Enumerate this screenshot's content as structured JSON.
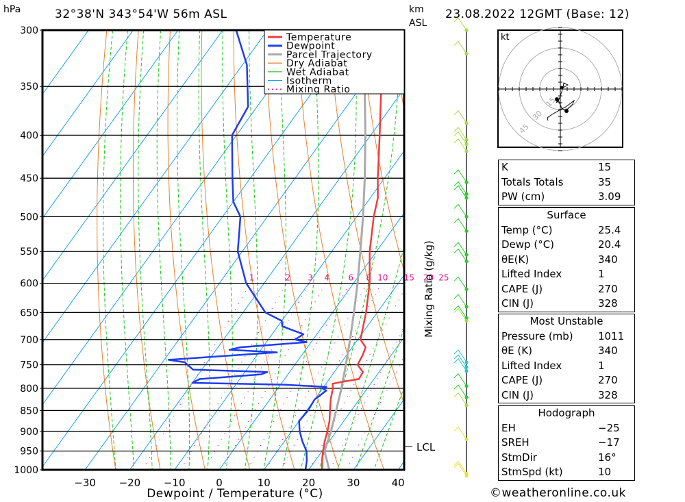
{
  "header": {
    "pressure_unit": "hPa",
    "location": "32°38'N  343°54'W  56m  ASL",
    "height_unit_line1": "km",
    "height_unit_line2": "ASL",
    "datetime": "23.08.2022  12GMT  (Base: 12)"
  },
  "colors": {
    "temperature": "#f03c3c",
    "dewpoint": "#1e3cf0",
    "parcel": "#aaaaaa",
    "dry_adiabat": "#e8822a",
    "wet_adiabat": "#1ec81e",
    "isotherm": "#1ea0f0",
    "mixing_ratio": "#e0148c",
    "wind_high": "#a0e040",
    "wind_mid": "#28d028",
    "wind_cyan": "#28c8c8",
    "wind_low": "#e8e040"
  },
  "chart_data": {
    "type": "line",
    "title": "32°38'N 343°54'W 56m ASL",
    "subtitle": "23.08.2022 12GMT (Base: 12)",
    "xlabel": "Dewpoint / Temperature (°C)",
    "ylabel": "hPa",
    "right_label": "Mixing Ratio (g/kg)",
    "x_ticks": [
      -30,
      -20,
      -10,
      0,
      10,
      20,
      30,
      40
    ],
    "x_tick_labels": [
      "−30",
      "−20",
      "−10",
      "0",
      "10",
      "20",
      "30",
      "40"
    ],
    "xlim": [
      -40,
      41
    ],
    "y_ticks": [
      300,
      350,
      400,
      450,
      500,
      550,
      600,
      650,
      700,
      750,
      800,
      850,
      900,
      950,
      1000
    ],
    "ylim": [
      1000,
      300
    ],
    "legend_position": "top-center",
    "legend": [
      {
        "label": "Temperature",
        "key": "temperature",
        "style": "solid"
      },
      {
        "label": "Dewpoint",
        "key": "dewpoint",
        "style": "solid"
      },
      {
        "label": "Parcel Trajectory",
        "key": "parcel",
        "style": "solid"
      },
      {
        "label": "Dry Adiabat",
        "key": "dry_adiabat",
        "style": "thin"
      },
      {
        "label": "Wet Adiabat",
        "key": "wet_adiabat",
        "style": "thin"
      },
      {
        "label": "Isotherm",
        "key": "isotherm",
        "style": "thin"
      },
      {
        "label": "Mixing Ratio",
        "key": "mixing_ratio",
        "style": "dotted"
      }
    ],
    "mixing_ratio_labels": [
      "1",
      "2",
      "3",
      "4",
      "6",
      "8",
      "10",
      "15",
      "20",
      "25"
    ],
    "mixing_ratio_values": [
      1,
      2,
      3,
      4,
      6,
      8,
      10,
      15,
      20,
      25
    ],
    "mixing_ratio_label_pressure": 600,
    "lcl_label": "LCL",
    "lcl_pressure": 945,
    "series": [
      {
        "name": "Temperature",
        "key": "temperature",
        "points": [
          [
            1011,
            25.4
          ],
          [
            1000,
            23.0
          ],
          [
            975,
            21.5
          ],
          [
            950,
            20.2
          ],
          [
            925,
            19.0
          ],
          [
            900,
            18.0
          ],
          [
            875,
            16.8
          ],
          [
            850,
            15.2
          ],
          [
            825,
            13.6
          ],
          [
            800,
            12.3
          ],
          [
            790,
            11.5
          ],
          [
            785,
            13.8
          ],
          [
            780,
            16.6
          ],
          [
            765,
            16.4
          ],
          [
            750,
            14.0
          ],
          [
            730,
            13.6
          ],
          [
            715,
            13.0
          ],
          [
            700,
            10.6
          ],
          [
            650,
            7.5
          ],
          [
            600,
            3.6
          ],
          [
            550,
            -1.5
          ],
          [
            500,
            -6.2
          ],
          [
            475,
            -8.3
          ],
          [
            450,
            -11.5
          ],
          [
            400,
            -18.0
          ],
          [
            350,
            -25.5
          ],
          [
            320,
            -31.5
          ],
          [
            300,
            -34.0
          ]
        ]
      },
      {
        "name": "Dewpoint",
        "key": "dewpoint",
        "points": [
          [
            1011,
            20.4
          ],
          [
            1000,
            19.3
          ],
          [
            975,
            18.1
          ],
          [
            950,
            16.5
          ],
          [
            925,
            14.0
          ],
          [
            900,
            11.8
          ],
          [
            875,
            10.0
          ],
          [
            850,
            10.3
          ],
          [
            825,
            10.0
          ],
          [
            805,
            11.2
          ],
          [
            800,
            10.0
          ],
          [
            797,
            10.6
          ],
          [
            792,
            1.0
          ],
          [
            788,
            -20.0
          ],
          [
            780,
            -19.0
          ],
          [
            770,
            -6.0
          ],
          [
            765,
            -5.0
          ],
          [
            760,
            -22.0
          ],
          [
            745,
            -25.0
          ],
          [
            740,
            -29.0
          ],
          [
            725,
            -6.0
          ],
          [
            720,
            -17.0
          ],
          [
            715,
            -15.0
          ],
          [
            705,
            -1.0
          ],
          [
            700,
            -4.0
          ],
          [
            690,
            -3.0
          ],
          [
            675,
            -9.0
          ],
          [
            665,
            -10.0
          ],
          [
            650,
            -15.0
          ],
          [
            600,
            -24.0
          ],
          [
            550,
            -31.0
          ],
          [
            500,
            -36.0
          ],
          [
            480,
            -40.0
          ],
          [
            450,
            -44.0
          ],
          [
            400,
            -51.0
          ],
          [
            370,
            -52.0
          ],
          [
            330,
            -59.0
          ],
          [
            300,
            -67.0
          ]
        ]
      },
      {
        "name": "Parcel Trajectory",
        "key": "parcel",
        "points": [
          [
            1011,
            25.4
          ],
          [
            1000,
            24.6
          ],
          [
            975,
            22.6
          ],
          [
            950,
            20.5
          ],
          [
            900,
            18.8
          ],
          [
            850,
            16.6
          ],
          [
            800,
            14.2
          ],
          [
            750,
            11.4
          ],
          [
            700,
            8.3
          ],
          [
            650,
            4.8
          ],
          [
            600,
            0.9
          ],
          [
            550,
            -3.6
          ],
          [
            500,
            -8.6
          ],
          [
            450,
            -14.4
          ],
          [
            400,
            -21.2
          ],
          [
            350,
            -29.2
          ],
          [
            320,
            -34.8
          ]
        ]
      }
    ]
  },
  "wind_profile": {
    "points": [
      {
        "p": 300,
        "color": "wind_high"
      },
      {
        "p": 320,
        "color": "wind_high"
      },
      {
        "p": 387,
        "color": "wind_high"
      },
      {
        "p": 405,
        "color": "wind_high"
      },
      {
        "p": 410,
        "color": "wind_high"
      },
      {
        "p": 418,
        "color": "wind_high"
      },
      {
        "p": 455,
        "color": "wind_mid"
      },
      {
        "p": 470,
        "color": "wind_mid"
      },
      {
        "p": 475,
        "color": "wind_mid"
      },
      {
        "p": 500,
        "color": "wind_mid"
      },
      {
        "p": 520,
        "color": "wind_mid"
      },
      {
        "p": 555,
        "color": "wind_mid"
      },
      {
        "p": 565,
        "color": "wind_mid"
      },
      {
        "p": 610,
        "color": "wind_mid"
      },
      {
        "p": 640,
        "color": "wind_mid"
      },
      {
        "p": 660,
        "color": "wind_mid"
      },
      {
        "p": 665,
        "color": "wind_high"
      },
      {
        "p": 745,
        "color": "wind_cyan"
      },
      {
        "p": 755,
        "color": "wind_cyan"
      },
      {
        "p": 763,
        "color": "wind_cyan"
      },
      {
        "p": 795,
        "color": "wind_mid"
      },
      {
        "p": 820,
        "color": "wind_mid"
      },
      {
        "p": 838,
        "color": "wind_high"
      },
      {
        "p": 920,
        "color": "wind_low"
      },
      {
        "p": 1005,
        "color": "wind_low"
      },
      {
        "p": 1011,
        "color": "wind_low"
      }
    ]
  },
  "hodograph": {
    "unit_label": "kt",
    "ring_labels": [
      "15",
      "30",
      "45"
    ],
    "ring_values": [
      15,
      30,
      45
    ]
  },
  "indices": {
    "general": [
      {
        "label": "K",
        "value": "15"
      },
      {
        "label": "Totals Totals",
        "value": "35"
      },
      {
        "label": "PW (cm)",
        "value": "3.09"
      }
    ],
    "surface": {
      "title": "Surface",
      "rows": [
        {
          "label": "Temp (°C)",
          "value": "25.4"
        },
        {
          "label": "Dewp (°C)",
          "value": "20.4"
        },
        {
          "label": "θE(K)",
          "value": "340"
        },
        {
          "label": "Lifted Index",
          "value": "1"
        },
        {
          "label": "CAPE (J)",
          "value": "270"
        },
        {
          "label": "CIN (J)",
          "value": "328"
        }
      ]
    },
    "most_unstable": {
      "title": "Most Unstable",
      "rows": [
        {
          "label": "Pressure (mb)",
          "value": "1011"
        },
        {
          "label": "θE (K)",
          "value": "340"
        },
        {
          "label": "Lifted Index",
          "value": "1"
        },
        {
          "label": "CAPE (J)",
          "value": "270"
        },
        {
          "label": "CIN (J)",
          "value": "328"
        }
      ]
    },
    "hodograph": {
      "title": "Hodograph",
      "rows": [
        {
          "label": "EH",
          "value": "−25"
        },
        {
          "label": "SREH",
          "value": "−17"
        },
        {
          "label": "StmDir",
          "value": "16°"
        },
        {
          "label": "StmSpd (kt)",
          "value": "10"
        }
      ]
    }
  },
  "footer": {
    "copyright": "©weatheronline.co.uk"
  }
}
